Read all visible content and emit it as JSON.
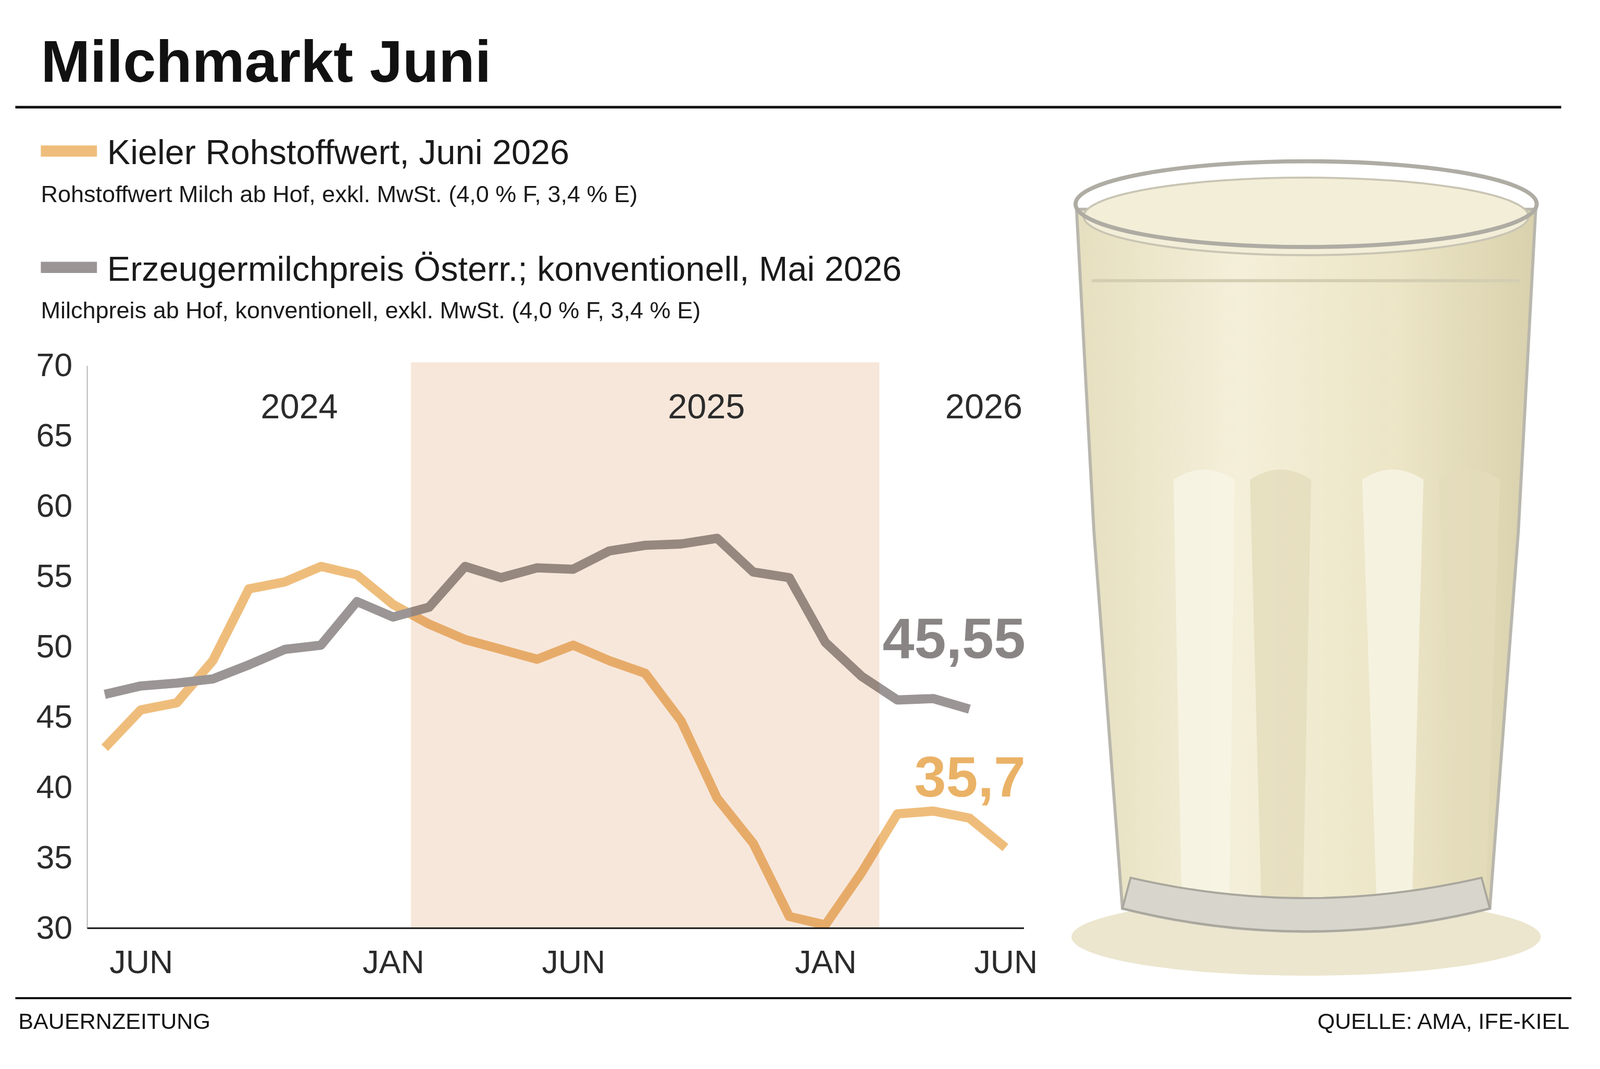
{
  "chart_data": {
    "type": "line",
    "title": "Milchmarkt Juni",
    "categories": [
      null,
      "JUN",
      null,
      null,
      null,
      null,
      null,
      null,
      "JAN",
      null,
      null,
      null,
      null,
      "JUN",
      null,
      null,
      null,
      null,
      null,
      null,
      "JAN",
      null,
      null,
      null,
      null,
      "JUN"
    ],
    "year_labels": [
      "2024",
      "2025",
      "2026"
    ],
    "series": [
      {
        "name": "Kieler Rohstoffwert, Juni 2026",
        "description": "Rohstoffwert Milch ab Hof, exkl. MwSt. (4,0 % F, 3,4 % E)",
        "color": "#efbd7b",
        "values": [
          42.8,
          45.5,
          46.0,
          49.0,
          54.1,
          54.6,
          55.7,
          55.1,
          53.0,
          51.6,
          50.5,
          49.8,
          49.1,
          50.1,
          49.0,
          48.1,
          44.7,
          39.2,
          36.0,
          30.8,
          30.2,
          33.9,
          38.1,
          38.3,
          37.8,
          35.7
        ],
        "value_labels": [
          null,
          null,
          null,
          null,
          null,
          null,
          null,
          null,
          null,
          null,
          null,
          null,
          null,
          null,
          null,
          null,
          null,
          null,
          null,
          null,
          null,
          null,
          null,
          null,
          null,
          "35,7"
        ]
      },
      {
        "name": "Erzeugermilchpreis Österr.; konventionell, Mai 2026",
        "description": "Milchpreis ab Hof, konventionell, exkl. MwSt. (4,0 % F, 3,4 % E)",
        "color": "#9b9595",
        "values": [
          46.6,
          47.2,
          47.4,
          47.7,
          48.7,
          49.8,
          50.1,
          53.2,
          52.1,
          52.8,
          55.7,
          54.9,
          55.6,
          55.5,
          56.8,
          57.2,
          57.3,
          57.7,
          55.3,
          54.9,
          50.3,
          47.9,
          46.2,
          46.3,
          45.55,
          null
        ],
        "value_labels": [
          null,
          null,
          null,
          null,
          null,
          null,
          null,
          null,
          null,
          null,
          null,
          null,
          null,
          null,
          null,
          null,
          null,
          null,
          null,
          null,
          null,
          null,
          null,
          null,
          "45,55",
          null
        ]
      }
    ],
    "ylim": [
      30,
      70
    ],
    "yticks": [
      30,
      35,
      40,
      45,
      50,
      55,
      60,
      65,
      70
    ],
    "grid": false,
    "legend": "top-left",
    "data_labels": true,
    "publisher": "BAUERNZEITUNG",
    "source": "QUELLE: AMA, IFE-KIEL"
  }
}
